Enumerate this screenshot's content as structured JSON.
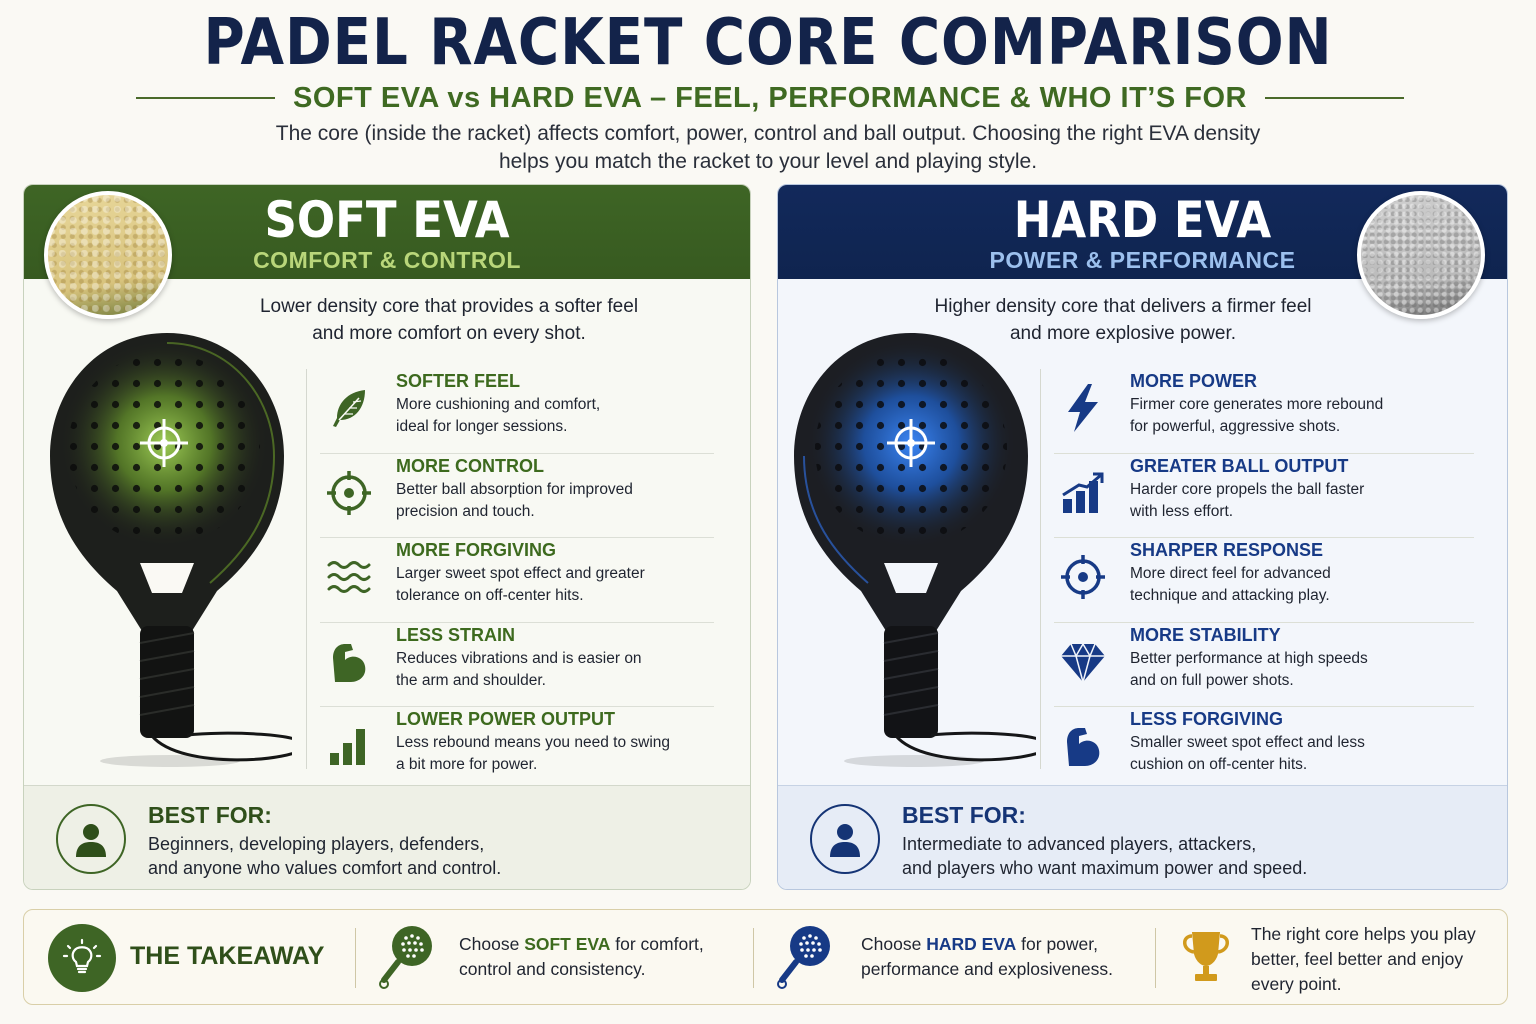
{
  "header": {
    "title": "PADEL RACKET CORE COMPARISON",
    "subtitle": "SOFT EVA vs HARD EVA – FEEL, PERFORMANCE & WHO IT’S FOR",
    "intro_line1": "The core (inside the racket) affects comfort, power, control and ball output. Choosing the right EVA density",
    "intro_line2": "helps you match the racket to your level and playing style."
  },
  "soft": {
    "title": "SOFT EVA",
    "tagline": "COMFORT & CONTROL",
    "desc_line1": "Lower density core that provides a softer feel",
    "desc_line2": "and more comfort on every shot.",
    "features": [
      {
        "icon": "feather-icon",
        "heading": "SOFTER FEEL",
        "line1": "More cushioning and comfort,",
        "line2": "ideal for longer sessions."
      },
      {
        "icon": "target-icon",
        "heading": "MORE CONTROL",
        "line1": "Better ball absorption for improved",
        "line2": "precision and touch."
      },
      {
        "icon": "waves-icon",
        "heading": "MORE FORGIVING",
        "line1": "Larger sweet spot effect and greater",
        "line2": "tolerance on off-center hits."
      },
      {
        "icon": "flexed-arm-icon",
        "heading": "LESS STRAIN",
        "line1": "Reduces vibrations and is easier on",
        "line2": "the arm and shoulder."
      },
      {
        "icon": "bar-chart-icon",
        "heading": "LOWER POWER OUTPUT",
        "line1": "Less rebound means you need to swing",
        "line2": "a bit more for power."
      }
    ],
    "best_for_heading": "BEST FOR:",
    "best_for_line1": "Beginners, developing players, defenders,",
    "best_for_line2": "and anyone who values comfort and control."
  },
  "hard": {
    "title": "HARD EVA",
    "tagline": "POWER & PERFORMANCE",
    "desc_line1": "Higher density core that delivers a firmer feel",
    "desc_line2": "and more explosive power.",
    "features": [
      {
        "icon": "lightning-icon",
        "heading": "MORE POWER",
        "line1": "Firmer core generates more rebound",
        "line2": "for powerful, aggressive shots."
      },
      {
        "icon": "rising-bar-chart-icon",
        "heading": "GREATER BALL OUTPUT",
        "line1": "Harder core propels the ball faster",
        "line2": "with less effort."
      },
      {
        "icon": "target-icon",
        "heading": "SHARPER RESPONSE",
        "line1": "More direct feel for advanced",
        "line2": "technique and attacking play."
      },
      {
        "icon": "diamond-icon",
        "heading": "MORE STABILITY",
        "line1": "Better performance at high speeds",
        "line2": "and on full power shots."
      },
      {
        "icon": "flexed-arm-icon",
        "heading": "LESS FORGIVING",
        "line1": "Smaller sweet spot effect and less",
        "line2": "cushion on off-center hits."
      }
    ],
    "best_for_heading": "BEST FOR:",
    "best_for_line1": "Intermediate to advanced players, attackers,",
    "best_for_line2": "and players who want maximum power and speed."
  },
  "takeaway": {
    "label": "THE TAKEAWAY",
    "soft_pre": "Choose ",
    "soft_key": "SOFT EVA",
    "soft_post": " for comfort,",
    "soft_line2": "control and consistency.",
    "hard_pre": "Choose ",
    "hard_key": "HARD EVA",
    "hard_post": " for power,",
    "hard_line2": "performance and explosiveness.",
    "final_line1": "The right core helps you play",
    "final_line2": "better, feel better and enjoy",
    "final_line3": "every point."
  },
  "colors": {
    "soft_green": "#3e6525",
    "hard_navy": "#12295b",
    "title_navy": "#13234a",
    "soft_glow": "#7fb83a",
    "hard_glow": "#1f6fe0",
    "trophy_gold": "#d19a1c"
  }
}
